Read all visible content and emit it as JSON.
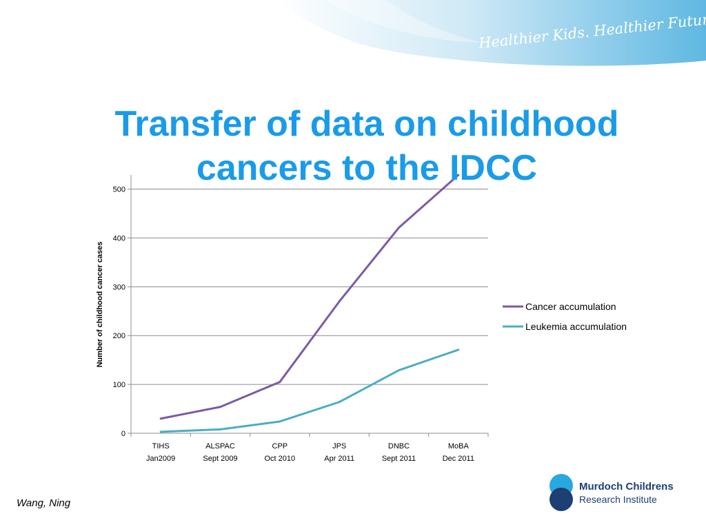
{
  "banner": {
    "tagline": "Healthier Kids. Healthier Future."
  },
  "slide": {
    "title_line1": "Transfer of data on childhood",
    "title_line2": "cancers to the IDCC",
    "author": "Wang, Ning"
  },
  "logo": {
    "name": "Murdoch Childrens",
    "subtitle": "Research Institute"
  },
  "colors": {
    "title": "#1a9be8",
    "cancer": "#7b5aa6",
    "leukemia": "#4bacc6",
    "logo": "#1d3f73"
  },
  "chart_data": {
    "type": "line",
    "title": "",
    "xlabel": "",
    "ylabel": "Number of childhood cancer cases",
    "ylim": [
      0,
      500
    ],
    "yticks": [
      0,
      100,
      200,
      300,
      400,
      500
    ],
    "grid": true,
    "legend": "right",
    "categories": [
      [
        "TIHS",
        "Jan2009"
      ],
      [
        "ALSPAC",
        "Sept 2009"
      ],
      [
        "CPP",
        "Oct 2010"
      ],
      [
        "JPS",
        "Apr 2011"
      ],
      [
        "DNBC",
        "Sept 2011"
      ],
      [
        "MoBA",
        "Dec 2011"
      ]
    ],
    "series": [
      {
        "name": "Cancer accumulation",
        "color": "#7b5aa6",
        "values": [
          30,
          54,
          105,
          270,
          421,
          529
        ]
      },
      {
        "name": "Leukemia accumulation",
        "color": "#4bacc6",
        "values": [
          3,
          8,
          24,
          64,
          129,
          171
        ]
      }
    ]
  }
}
